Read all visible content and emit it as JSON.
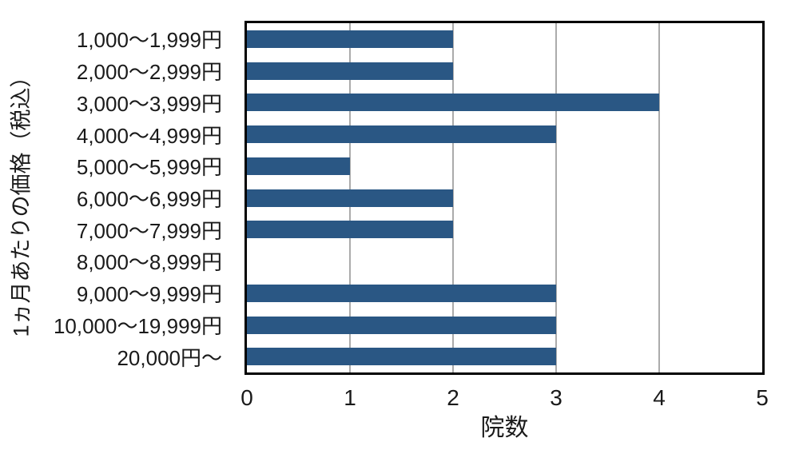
{
  "chart_data": {
    "type": "bar",
    "orientation": "horizontal",
    "title": "",
    "categories": [
      "1,000～1,999円",
      "2,000～2,999円",
      "3,000～3,999円",
      "4,000～4,999円",
      "5,000～5,999円",
      "6,000～6,999円",
      "7,000～7,999円",
      "8,000～8,999円",
      "9,000～9,999円",
      "10,000～19,999円",
      "20,000円～"
    ],
    "values": [
      2,
      2,
      4,
      3,
      1,
      2,
      2,
      0,
      3,
      3,
      3
    ],
    "xlabel": "院数",
    "ylabel": "1ヵ月あたりの価格（税込）",
    "xlim": [
      0,
      5
    ],
    "xticks": [
      "0",
      "1",
      "2",
      "3",
      "4",
      "5"
    ],
    "grid": "vertical-gridlines-at-each-tick",
    "legend": "none",
    "colors": {
      "bar": "#2a5784",
      "gridline": "#ababab",
      "axis_border": "#000000",
      "text": "#1a1a1a",
      "background": "#ffffff"
    }
  }
}
